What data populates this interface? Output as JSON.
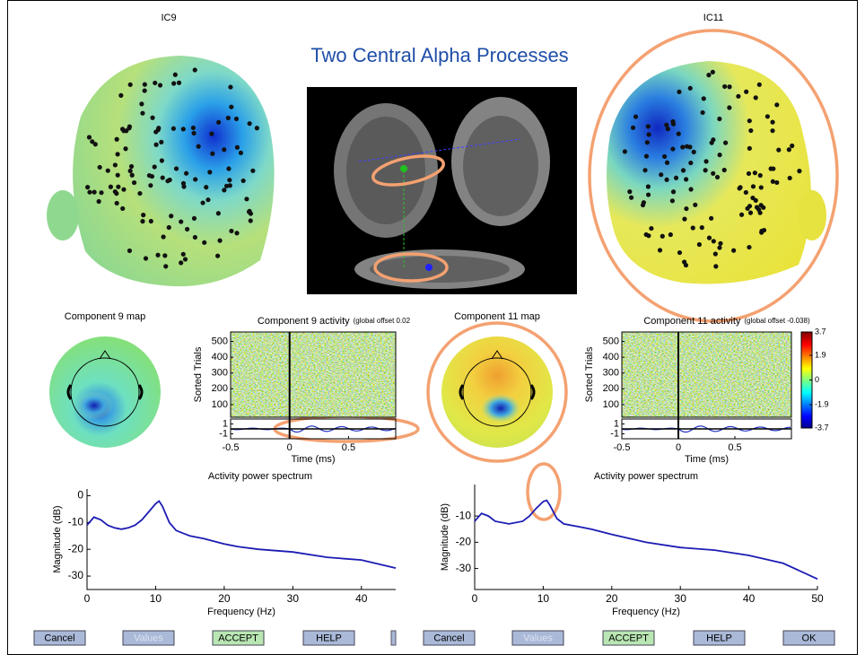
{
  "header": {
    "left_label": "IC9",
    "right_label": "IC11",
    "title": "Two Central Alpha Processes"
  },
  "chart_data": [
    {
      "type": "topo",
      "title": "Component 9 map"
    },
    {
      "type": "erpimage",
      "title": "Component 9 activity",
      "subtitle": "(global offset 0.02",
      "xlabel": "Time (ms)",
      "ylabel": "Sorted Trials",
      "xlim": [
        -0.5,
        0.9
      ],
      "xticks": [
        -0.5,
        0,
        0.5
      ],
      "ylim": [
        20,
        560
      ],
      "yticks": [
        500,
        400,
        300,
        200,
        100
      ],
      "trace": {
        "ylim": [
          -2,
          2
        ],
        "yticks": [
          1,
          -1
        ]
      }
    },
    {
      "type": "line",
      "title": "Activity power spectrum",
      "xlabel": "Frequency (Hz)",
      "ylabel": "Magnitude (dB)",
      "xlim": [
        0,
        45
      ],
      "xticks": [
        0,
        10,
        20,
        30,
        40
      ],
      "ylim": [
        -35,
        2.5
      ],
      "yticks": [
        0,
        -10,
        -20,
        -30
      ],
      "x": [
        0,
        1,
        2,
        3,
        4,
        5,
        6,
        7,
        8,
        9,
        10,
        10.5,
        11,
        12,
        13,
        14,
        15,
        17,
        20,
        22,
        25,
        30,
        35,
        40,
        45
      ],
      "series": [
        {
          "color": "#1c1cb4",
          "values": [
            -11,
            -8,
            -9,
            -11,
            -12,
            -12.5,
            -12,
            -11,
            -9,
            -6,
            -3,
            -2,
            -4,
            -10,
            -13,
            -14,
            -15,
            -16,
            -18,
            -19,
            -20,
            -21,
            -23,
            -24,
            -27
          ]
        }
      ]
    },
    {
      "type": "topo",
      "title": "Component 11 map"
    },
    {
      "type": "erpimage",
      "title": "Component 11 activity",
      "subtitle": "(global offset -0.038)",
      "xlabel": "Time (ms)",
      "ylabel": "Sorted Trials",
      "xlim": [
        -0.5,
        1
      ],
      "xticks": [
        -0.5,
        0,
        0.5
      ],
      "ylim": [
        20,
        560
      ],
      "yticks": [
        500,
        400,
        300,
        200,
        100
      ],
      "trace": {
        "ylim": [
          -2,
          2
        ],
        "yticks": [
          1,
          -1
        ]
      },
      "colorbar": {
        "lim": [
          -3.7,
          3.7
        ],
        "ticks": [
          3.7,
          1.9,
          0,
          -1.9,
          -3.7
        ]
      }
    },
    {
      "type": "line",
      "title": "Activity power spectrum",
      "xlabel": "Frequency (Hz)",
      "ylabel": "Magnitude (dB)",
      "xlim": [
        0,
        50
      ],
      "xticks": [
        0,
        10,
        20,
        30,
        40,
        50
      ],
      "ylim": [
        -38,
        2
      ],
      "yticks": [
        -10,
        -20,
        -30
      ],
      "x": [
        0,
        1,
        2,
        3,
        5,
        7,
        8,
        9,
        10,
        10.5,
        11,
        12,
        13,
        15,
        17,
        20,
        25,
        30,
        35,
        40,
        45,
        50
      ],
      "series": [
        {
          "color": "#1c1cb4",
          "values": [
            -12,
            -9,
            -10,
            -12,
            -13,
            -12,
            -10,
            -7,
            -4.5,
            -4,
            -6,
            -11,
            -13,
            -14,
            -15,
            -17,
            -20,
            -22,
            -23,
            -25,
            -28,
            -34
          ]
        }
      ]
    }
  ],
  "buttons": [
    "Cancel",
    "Values",
    "ACCEPT",
    "HELP",
    "Cancel",
    "Values",
    "ACCEPT",
    "HELP",
    "OK"
  ]
}
